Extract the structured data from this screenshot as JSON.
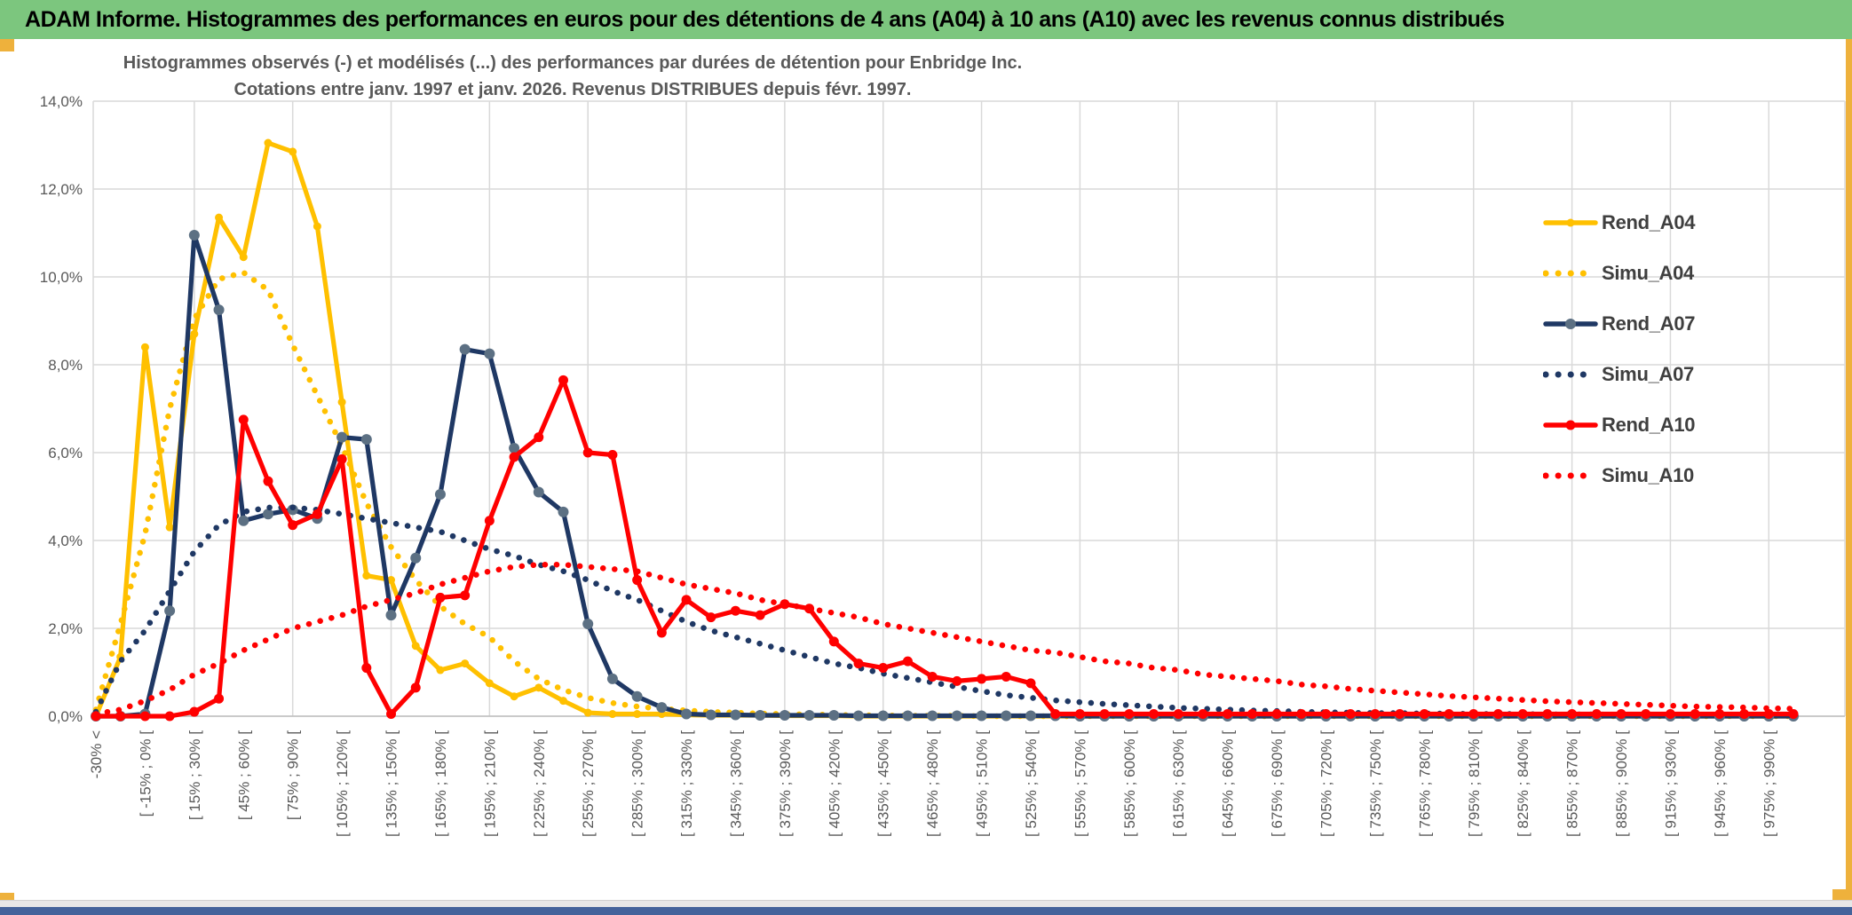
{
  "window": {
    "title": "ADAM Informe. Histogrammes des performances en euros pour des détentions de 4 ans (A04) à 10 ans (A10) avec les revenus connus distribués",
    "colors": {
      "banner_bg": "#7CC67E",
      "banner_text": "#000000",
      "accent_yellow": "#EEB13C",
      "bottom_bar": "#44639B",
      "strip_gray": "#E7E7E7",
      "gridline": "#D9D9D9",
      "axis_text": "#595959"
    }
  },
  "chart_data": {
    "type": "line",
    "title_line1": "Histogrammes observés (-) et modélisés (...) des performances par durées de détention pour Enbridge Inc.",
    "title_line2": "Cotations entre janv. 1997 et janv. 2026. Revenus DISTRIBUES depuis févr. 1997.",
    "n_bins": 70,
    "bin_width_pct": 15,
    "grid": true,
    "legend_position": "right",
    "y_axis": {
      "min": 0,
      "max": 14,
      "step": 2,
      "tick_labels": [
        "0,0%",
        "2,0%",
        "4,0%",
        "6,0%",
        "8,0%",
        "10,0%",
        "12,0%",
        "14,0%"
      ]
    },
    "x_tick_labels": [
      "-30% <",
      "[ -15% ; 0% [",
      "[ 15% ; 30% [",
      "[ 45% ; 60% [",
      "[ 75% ; 90% [",
      "[ 105% ; 120% [",
      "[ 135% ; 150% [",
      "[ 165% ; 180% [",
      "[ 195% ; 210% [",
      "[ 225% ; 240% [",
      "[ 255% ; 270% [",
      "[ 285% ; 300% [",
      "[ 315% ; 330% [",
      "[ 345% ; 360% [",
      "[ 375% ; 390% [",
      "[ 405% ; 420% [",
      "[ 435% ; 450% [",
      "[ 465% ; 480% [",
      "[ 495% ; 510% [",
      "[ 525% ; 540% [",
      "[ 555% ; 570% [",
      "[ 585% ; 600% [",
      "[ 615% ; 630% [",
      "[ 645% ; 660% [",
      "[ 675% ; 690% [",
      "[ 705% ; 720% [",
      "[ 735% ; 750% [",
      "[ 765% ; 780% [",
      "[ 795% ; 810% [",
      "[ 825% ; 840% [",
      "[ 855% ; 870% [",
      "[ 885% ; 900% [",
      "[ 915% ; 930% [",
      "[ 945% ; 960% [",
      "[ 975% ; 990% ["
    ],
    "series": [
      {
        "name": "Rend_A04",
        "color": "#FFC000",
        "style": "solid",
        "marker": true,
        "marker_r": 4.5,
        "values": [
          0,
          1.35,
          8.4,
          4.3,
          8.7,
          11.35,
          10.45,
          13.05,
          12.85,
          11.15,
          7.15,
          3.2,
          3.1,
          1.6,
          1.05,
          1.2,
          0.75,
          0.45,
          0.65,
          0.35,
          0.08,
          0.05,
          0.05,
          0.05,
          0.03,
          0.02,
          0.02,
          0.02,
          0.01,
          0.01,
          0.01,
          0,
          0,
          0,
          0,
          0,
          0,
          0,
          0,
          0,
          0,
          0,
          0,
          0,
          0,
          0,
          0,
          0,
          0,
          0,
          0,
          0,
          0,
          0,
          0,
          0,
          0,
          0,
          0,
          0,
          0,
          0,
          0,
          0,
          0,
          0,
          0,
          0,
          0,
          0
        ]
      },
      {
        "name": "Simu_A04",
        "color": "#FFC000",
        "style": "dotted",
        "marker": false,
        "values": [
          0.15,
          2.1,
          4.15,
          7.0,
          9.05,
          9.95,
          10.1,
          9.7,
          8.45,
          7.3,
          6.15,
          4.85,
          3.85,
          3.1,
          2.5,
          2.1,
          1.8,
          1.25,
          0.85,
          0.6,
          0.42,
          0.3,
          0.22,
          0.17,
          0.13,
          0.1,
          0.08,
          0.06,
          0.05,
          0.04,
          0.03,
          0.02,
          0.02,
          0.01,
          0.01,
          0.01,
          0,
          0,
          0,
          0,
          0,
          0,
          0,
          0,
          0,
          0,
          0,
          0,
          0,
          0,
          0,
          0,
          0,
          0,
          0,
          0,
          0,
          0,
          0,
          0,
          0,
          0,
          0,
          0,
          0,
          0,
          0,
          0,
          0,
          0
        ]
      },
      {
        "name": "Rend_A07",
        "color": "#1F3864",
        "style": "solid",
        "marker": true,
        "marker_r": 6,
        "marker_color": "#5C7083",
        "values": [
          0,
          0,
          0.05,
          2.4,
          10.95,
          9.25,
          4.45,
          4.6,
          4.7,
          4.5,
          6.35,
          6.3,
          2.3,
          3.6,
          5.05,
          8.35,
          8.25,
          6.1,
          5.1,
          4.65,
          2.1,
          0.85,
          0.45,
          0.2,
          0.05,
          0.03,
          0.03,
          0.02,
          0.02,
          0.02,
          0.02,
          0.01,
          0.01,
          0.01,
          0.01,
          0.01,
          0.01,
          0.01,
          0.01,
          0.01,
          0,
          0,
          0,
          0,
          0,
          0,
          0,
          0,
          0,
          0,
          0,
          0,
          0,
          0,
          0,
          0,
          0,
          0,
          0,
          0,
          0,
          0,
          0,
          0,
          0,
          0,
          0,
          0,
          0,
          0
        ]
      },
      {
        "name": "Simu_A07",
        "color": "#1F3864",
        "style": "dotted",
        "marker": false,
        "values": [
          0.1,
          1.25,
          1.95,
          2.85,
          3.75,
          4.35,
          4.65,
          4.75,
          4.75,
          4.7,
          4.6,
          4.5,
          4.4,
          4.3,
          4.2,
          4.0,
          3.8,
          3.65,
          3.45,
          3.3,
          3.1,
          2.85,
          2.65,
          2.4,
          2.15,
          1.95,
          1.8,
          1.65,
          1.5,
          1.35,
          1.2,
          1.1,
          0.97,
          0.87,
          0.77,
          0.67,
          0.57,
          0.48,
          0.42,
          0.36,
          0.32,
          0.28,
          0.25,
          0.22,
          0.19,
          0.17,
          0.15,
          0.13,
          0.12,
          0.1,
          0.09,
          0.08,
          0.07,
          0.07,
          0.06,
          0.06,
          0.05,
          0.05,
          0.05,
          0.04,
          0.04,
          0.04,
          0.03,
          0.03,
          0.03,
          0.03,
          0.02,
          0.02,
          0.02,
          0.02
        ]
      },
      {
        "name": "Rend_A10",
        "color": "#FF0000",
        "style": "solid",
        "marker": true,
        "marker_r": 5.5,
        "values": [
          0,
          0,
          0,
          0,
          0.1,
          0.4,
          6.75,
          5.35,
          4.35,
          4.6,
          5.85,
          1.1,
          0.05,
          0.65,
          2.7,
          2.75,
          4.45,
          5.9,
          6.35,
          7.65,
          6.0,
          5.95,
          3.1,
          1.9,
          2.65,
          2.25,
          2.4,
          2.3,
          2.55,
          2.45,
          1.7,
          1.2,
          1.1,
          1.25,
          0.9,
          0.8,
          0.85,
          0.9,
          0.75,
          0.05,
          0.05,
          0.05,
          0.05,
          0.05,
          0.05,
          0.05,
          0.05,
          0.05,
          0.05,
          0.05,
          0.05,
          0.05,
          0.05,
          0.05,
          0.05,
          0.05,
          0.05,
          0.05,
          0.05,
          0.05,
          0.05,
          0.05,
          0.05,
          0.05,
          0.05,
          0.05,
          0.05,
          0.05,
          0.05,
          0.05
        ]
      },
      {
        "name": "Simu_A10",
        "color": "#FF0000",
        "style": "dotted",
        "marker": false,
        "values": [
          0.05,
          0.15,
          0.35,
          0.6,
          0.95,
          1.2,
          1.5,
          1.75,
          2.0,
          2.15,
          2.3,
          2.5,
          2.65,
          2.8,
          3.0,
          3.15,
          3.3,
          3.4,
          3.45,
          3.45,
          3.4,
          3.35,
          3.3,
          3.15,
          3.0,
          2.9,
          2.8,
          2.65,
          2.55,
          2.45,
          2.35,
          2.25,
          2.1,
          2.0,
          1.9,
          1.8,
          1.7,
          1.6,
          1.5,
          1.45,
          1.35,
          1.25,
          1.2,
          1.1,
          1.05,
          0.95,
          0.9,
          0.85,
          0.8,
          0.72,
          0.68,
          0.62,
          0.58,
          0.54,
          0.5,
          0.46,
          0.43,
          0.4,
          0.37,
          0.34,
          0.32,
          0.3,
          0.28,
          0.26,
          0.24,
          0.22,
          0.21,
          0.2,
          0.18,
          0.17
        ]
      }
    ]
  }
}
